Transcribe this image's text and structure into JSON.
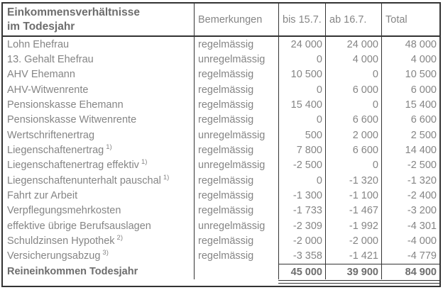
{
  "table": {
    "header": {
      "title_line1": "Einkommensverhältnisse",
      "title_line2": "im Todesjahr",
      "col_bemerkungen": "Bemerkungen",
      "col_bis": "bis 15.7.",
      "col_ab": "ab 16.7.",
      "col_total": "Total"
    },
    "rows": [
      {
        "label": "Lohn Ehefrau",
        "bemerkung": "regelmässig",
        "bis": "24 000",
        "ab": "24 000",
        "total": "48 000"
      },
      {
        "label": "13. Gehalt Ehefrau",
        "bemerkung": "unregelmässig",
        "bis": "0",
        "ab": "4 000",
        "total": "4 000"
      },
      {
        "label": "AHV Ehemann",
        "bemerkung": "regelmässig",
        "bis": "10 500",
        "ab": "0",
        "total": "10 500"
      },
      {
        "label": "AHV-Witwenrente",
        "bemerkung": "regelmässig",
        "bis": "0",
        "ab": "6 000",
        "total": "6 000"
      },
      {
        "label": "Pensionskasse Ehemann",
        "bemerkung": "regelmässig",
        "bis": "15 400",
        "ab": "0",
        "total": "15 400"
      },
      {
        "label": "Pensionskasse Witwenrente",
        "bemerkung": "regelmässig",
        "bis": "0",
        "ab": "6 600",
        "total": "6 600"
      },
      {
        "label": "Wertschriftenertrag",
        "bemerkung": "unregelmässig",
        "bis": "500",
        "ab": "2 000",
        "total": "2 500"
      },
      {
        "label": "Liegenschaftenertrag",
        "sup": "1)",
        "bemerkung": "regelmässig",
        "bis": "7 800",
        "ab": "6 600",
        "total": "14 400"
      },
      {
        "label": "Liegenschaftenertrag effektiv",
        "sup": "1)",
        "bemerkung": "unregelmässig",
        "bis": "-2 500",
        "ab": "0",
        "total": "-2 500"
      },
      {
        "label": "Liegenschaftenunterhalt pauschal",
        "sup": "1)",
        "bemerkung": "regelmässig",
        "bis": "0",
        "ab": "-1 320",
        "total": "-1 320"
      },
      {
        "label": "Fahrt zur Arbeit",
        "bemerkung": "regelmässig",
        "bis": "-1 300",
        "ab": "-1 100",
        "total": "-2 400"
      },
      {
        "label": "Verpflegungsmehrkosten",
        "bemerkung": "regelmässig",
        "bis": "-1 733",
        "ab": "-1 467",
        "total": "-3 200"
      },
      {
        "label": "effektive übrige Berufsauslagen",
        "bemerkung": "unregelmässig",
        "bis": "-2 309",
        "ab": "-1 992",
        "total": "-4 301"
      },
      {
        "label": "Schuldzinsen Hypothek",
        "sup": "2)",
        "bemerkung": "regelmässig",
        "bis": "-2 000",
        "ab": "-2 000",
        "total": "-4 000"
      },
      {
        "label": "Versicherungsabzug",
        "sup": "3)",
        "bemerkung": "regelmässig",
        "bis": "-3 358",
        "ab": "-1 421",
        "total": "-4 779"
      }
    ],
    "totals": {
      "label": "Reineinkommen Todesjahr",
      "bis": "45 000",
      "ab": "39 900",
      "total": "84 900"
    },
    "colors": {
      "text": "#858585",
      "text_bold": "#6d6d6d",
      "border": "#333333",
      "background": "#ffffff"
    }
  }
}
